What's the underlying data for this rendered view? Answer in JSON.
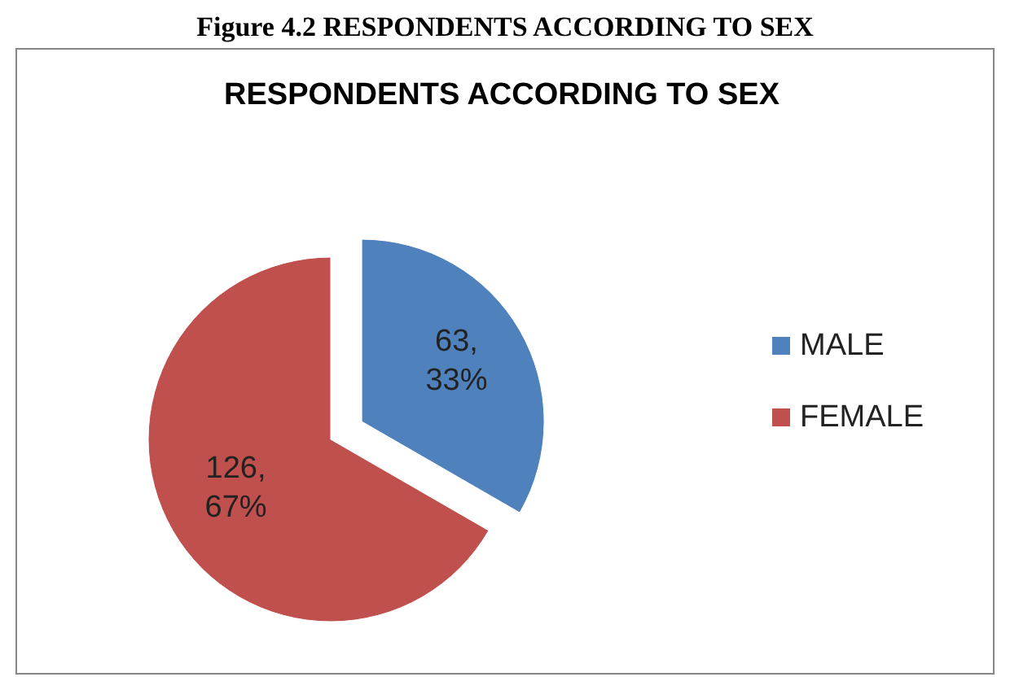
{
  "chart_data": {
    "type": "pie",
    "title": "RESPONDENTS ACCORDING TO SEX",
    "annotations": [
      "Figure 4.2 RESPONDENTS ACCORDING TO SEX"
    ],
    "categories": [
      "MALE",
      "FEMALE"
    ],
    "values": [
      63,
      126
    ],
    "colors": [
      "#4f81bd",
      "#c0504d"
    ],
    "value_labels": [
      "63, 33%",
      "126, 67%"
    ],
    "legend": "right"
  }
}
